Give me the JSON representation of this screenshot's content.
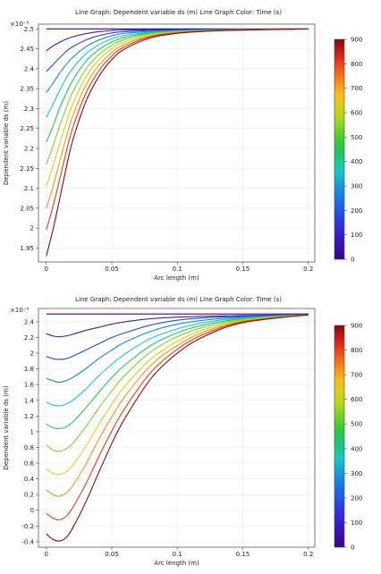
{
  "chart_data": [
    {
      "type": "line",
      "title": "Line Graph: Dependent variable ds (m)     Line Graph Color: Time (s)",
      "xlabel": "Arc length (m)",
      "ylabel": "Dependent variable ds (m)",
      "y_exponent_label": "×10⁻⁵",
      "xlim": [
        -0.006,
        0.205
      ],
      "ylim": [
        1.915,
        2.512
      ],
      "grid": true,
      "x_ticks": [
        "0",
        "0.05",
        "0.1",
        "0.15",
        "0.2"
      ],
      "x_tick_values": [
        0,
        0.05,
        0.1,
        0.15,
        0.2
      ],
      "y_ticks": [
        "1.95",
        "2",
        "2.05",
        "2.1",
        "2.15",
        "2.2",
        "2.25",
        "2.3",
        "2.35",
        "2.4",
        "2.45",
        "2.5"
      ],
      "y_tick_values": [
        1.95,
        2.0,
        2.05,
        2.1,
        2.15,
        2.2,
        2.25,
        2.3,
        2.35,
        2.4,
        2.45,
        2.5
      ],
      "x": [
        0,
        0.005,
        0.01,
        0.015,
        0.02,
        0.03,
        0.04,
        0.05,
        0.06,
        0.08,
        0.1,
        0.12,
        0.15,
        0.2
      ],
      "series": [
        {
          "time": 0,
          "values": [
            2.5,
            2.5,
            2.5,
            2.5,
            2.5,
            2.5,
            2.5,
            2.5,
            2.5,
            2.5,
            2.5,
            2.5,
            2.5,
            2.5
          ]
        },
        {
          "time": 90,
          "values": [
            2.445,
            2.457,
            2.466,
            2.474,
            2.48,
            2.488,
            2.493,
            2.496,
            2.497,
            2.498,
            2.499,
            2.499,
            2.499,
            2.5
          ]
        },
        {
          "time": 180,
          "values": [
            2.393,
            2.41,
            2.427,
            2.443,
            2.455,
            2.472,
            2.483,
            2.49,
            2.493,
            2.496,
            2.497,
            2.498,
            2.499,
            2.5
          ]
        },
        {
          "time": 270,
          "values": [
            2.34,
            2.363,
            2.388,
            2.41,
            2.428,
            2.455,
            2.472,
            2.483,
            2.489,
            2.494,
            2.496,
            2.497,
            2.499,
            2.5
          ]
        },
        {
          "time": 360,
          "values": [
            2.278,
            2.31,
            2.345,
            2.375,
            2.4,
            2.437,
            2.46,
            2.475,
            2.484,
            2.492,
            2.495,
            2.497,
            2.498,
            2.5
          ]
        },
        {
          "time": 450,
          "values": [
            2.215,
            2.255,
            2.3,
            2.337,
            2.37,
            2.418,
            2.448,
            2.467,
            2.479,
            2.49,
            2.494,
            2.496,
            2.498,
            2.5
          ]
        },
        {
          "time": 540,
          "values": [
            2.16,
            2.205,
            2.255,
            2.3,
            2.34,
            2.398,
            2.435,
            2.459,
            2.474,
            2.488,
            2.493,
            2.496,
            2.498,
            2.5
          ]
        },
        {
          "time": 630,
          "values": [
            2.105,
            2.155,
            2.21,
            2.262,
            2.31,
            2.378,
            2.422,
            2.45,
            2.468,
            2.486,
            2.492,
            2.495,
            2.498,
            2.5
          ]
        },
        {
          "time": 720,
          "values": [
            2.05,
            2.103,
            2.165,
            2.225,
            2.28,
            2.358,
            2.408,
            2.441,
            2.462,
            2.483,
            2.491,
            2.495,
            2.498,
            2.5
          ]
        },
        {
          "time": 810,
          "values": [
            1.995,
            2.053,
            2.12,
            2.188,
            2.25,
            2.337,
            2.394,
            2.432,
            2.456,
            2.481,
            2.49,
            2.494,
            2.498,
            2.5
          ]
        },
        {
          "time": 900,
          "values": [
            1.93,
            1.995,
            2.07,
            2.148,
            2.218,
            2.316,
            2.38,
            2.423,
            2.45,
            2.478,
            2.489,
            2.494,
            2.497,
            2.5
          ]
        }
      ],
      "colorbar": {
        "label": "Time (s)",
        "min": 0,
        "max": 900,
        "ticks": [
          "0",
          "100",
          "200",
          "300",
          "400",
          "500",
          "600",
          "700",
          "800",
          "900"
        ]
      }
    },
    {
      "type": "line",
      "title": "Line Graph: Dependent variable ds (m)     Line Graph Color: Time (s)",
      "xlabel": "Arc length (m)",
      "ylabel": "Dependent variable ds (m)",
      "y_exponent_label": "×10⁻⁵",
      "xlim": [
        -0.006,
        0.205
      ],
      "ylim": [
        -0.47,
        2.57
      ],
      "grid": true,
      "x_ticks": [
        "0",
        "0.05",
        "0.1",
        "0.15",
        "0.2"
      ],
      "x_tick_values": [
        0,
        0.05,
        0.1,
        0.15,
        0.2
      ],
      "y_ticks": [
        "-0.4",
        "-0.2",
        "0",
        "0.2",
        "0.4",
        "0.6",
        "0.8",
        "1",
        "1.2",
        "1.4",
        "1.6",
        "1.8",
        "2",
        "2.2",
        "2.4"
      ],
      "y_tick_values": [
        -0.4,
        -0.2,
        0,
        0.2,
        0.4,
        0.6,
        0.8,
        1.0,
        1.2,
        1.4,
        1.6,
        1.8,
        2.0,
        2.2,
        2.4
      ],
      "x": [
        0,
        0.005,
        0.01,
        0.015,
        0.02,
        0.03,
        0.04,
        0.05,
        0.06,
        0.08,
        0.1,
        0.12,
        0.15,
        0.2
      ],
      "series": [
        {
          "time": 0,
          "values": [
            2.5,
            2.5,
            2.5,
            2.5,
            2.5,
            2.5,
            2.5,
            2.5,
            2.5,
            2.5,
            2.5,
            2.5,
            2.5,
            2.5
          ]
        },
        {
          "time": 90,
          "values": [
            2.25,
            2.22,
            2.21,
            2.22,
            2.24,
            2.29,
            2.33,
            2.37,
            2.4,
            2.44,
            2.46,
            2.47,
            2.48,
            2.49
          ]
        },
        {
          "time": 180,
          "values": [
            1.96,
            1.93,
            1.92,
            1.93,
            1.96,
            2.04,
            2.12,
            2.2,
            2.26,
            2.36,
            2.42,
            2.45,
            2.47,
            2.49
          ]
        },
        {
          "time": 270,
          "values": [
            1.68,
            1.65,
            1.63,
            1.65,
            1.69,
            1.8,
            1.93,
            2.04,
            2.14,
            2.28,
            2.37,
            2.42,
            2.46,
            2.49
          ]
        },
        {
          "time": 360,
          "values": [
            1.38,
            1.34,
            1.33,
            1.35,
            1.4,
            1.54,
            1.71,
            1.86,
            1.99,
            2.19,
            2.31,
            2.39,
            2.45,
            2.49
          ]
        },
        {
          "time": 450,
          "values": [
            1.1,
            1.05,
            1.04,
            1.06,
            1.12,
            1.3,
            1.5,
            1.69,
            1.85,
            2.1,
            2.26,
            2.36,
            2.44,
            2.49
          ]
        },
        {
          "time": 540,
          "values": [
            0.83,
            0.77,
            0.75,
            0.78,
            0.85,
            1.06,
            1.3,
            1.52,
            1.72,
            2.02,
            2.21,
            2.33,
            2.43,
            2.49
          ]
        },
        {
          "time": 630,
          "values": [
            0.53,
            0.47,
            0.46,
            0.49,
            0.57,
            0.81,
            1.09,
            1.35,
            1.58,
            1.93,
            2.15,
            2.3,
            2.42,
            2.49
          ]
        },
        {
          "time": 720,
          "values": [
            0.26,
            0.2,
            0.18,
            0.22,
            0.31,
            0.58,
            0.9,
            1.19,
            1.45,
            1.85,
            2.1,
            2.27,
            2.41,
            2.49
          ]
        },
        {
          "time": 810,
          "values": [
            -0.04,
            -0.1,
            -0.12,
            -0.08,
            0.03,
            0.33,
            0.68,
            1.01,
            1.3,
            1.76,
            2.05,
            2.24,
            2.4,
            2.49
          ]
        },
        {
          "time": 900,
          "values": [
            -0.3,
            -0.37,
            -0.39,
            -0.35,
            -0.23,
            0.1,
            0.48,
            0.85,
            1.17,
            1.68,
            2.0,
            2.21,
            2.39,
            2.49
          ]
        }
      ],
      "colorbar": {
        "label": "Time (s)",
        "min": 0,
        "max": 900,
        "ticks": [
          "0",
          "100",
          "200",
          "300",
          "400",
          "500",
          "600",
          "700",
          "800",
          "900"
        ]
      }
    }
  ]
}
